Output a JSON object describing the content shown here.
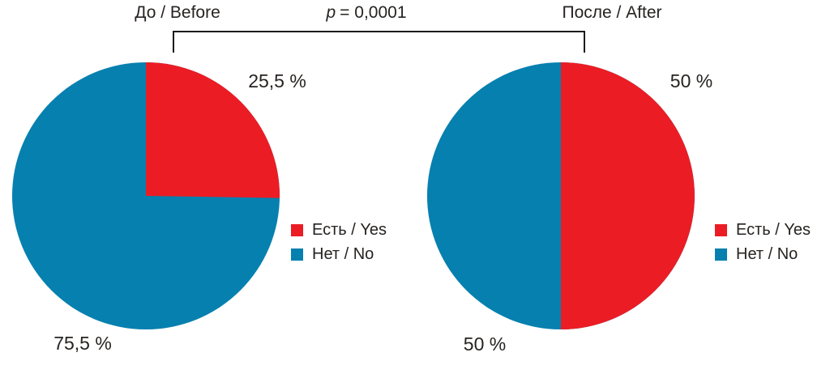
{
  "comparison": {
    "symbol": "p",
    "rest": "= 0,0001"
  },
  "colors": {
    "yes": "#EC1C24",
    "no": "#0680AF",
    "text": "#262321",
    "bracket": "#1B1B1B"
  },
  "legend": {
    "items": [
      {
        "label": "Есть / Yes",
        "color": "#EC1C24"
      },
      {
        "label": "Нет / No",
        "color": "#0680AF"
      }
    ]
  },
  "chart_data": [
    {
      "type": "pie",
      "title": "До / Before",
      "categories": [
        "Есть / Yes",
        "Нет / No"
      ],
      "values": [
        25.5,
        75.5
      ],
      "value_labels": [
        "25,5 %",
        "75,5 %"
      ],
      "colors": [
        "#EC1C24",
        "#0680AF"
      ],
      "start_angle_deg": 0,
      "direction": "clockwise",
      "legend_position": "right"
    },
    {
      "type": "pie",
      "title": "После / After",
      "categories": [
        "Есть / Yes",
        "Нет / No"
      ],
      "values": [
        50,
        50
      ],
      "value_labels": [
        "50 %",
        "50 %"
      ],
      "colors": [
        "#EC1C24",
        "#0680AF"
      ],
      "start_angle_deg": 0,
      "direction": "clockwise",
      "legend_position": "right"
    }
  ]
}
